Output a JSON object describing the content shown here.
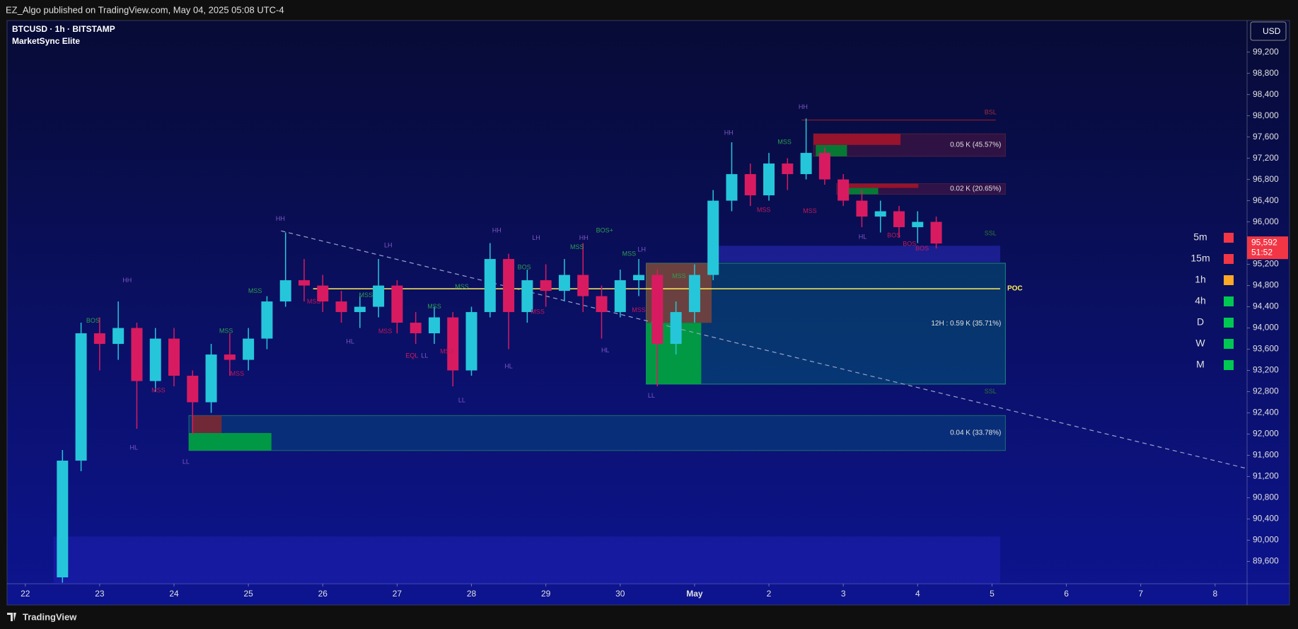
{
  "header": {
    "publisher": "EZ_Algo published on TradingView.com, May 04, 2025 05:08 UTC-4",
    "footer": "TradingView"
  },
  "chart_data": {
    "type": "candlestick",
    "title": "BTCUSD · 1h · BITSTAMP",
    "subtitle": "MarketSync Elite",
    "currency": "USD",
    "up_color": "#26c6da",
    "down_color": "#d81b60",
    "xlim": [
      -0.245,
      16.43
    ],
    "ylim": [
      89180,
      99795
    ],
    "xticks": [
      {
        "value": 0,
        "label": "22"
      },
      {
        "value": 1,
        "label": "23"
      },
      {
        "value": 2,
        "label": "24"
      },
      {
        "value": 3,
        "label": "25"
      },
      {
        "value": 4,
        "label": "26"
      },
      {
        "value": 5,
        "label": "27"
      },
      {
        "value": 6,
        "label": "28"
      },
      {
        "value": 7,
        "label": "29"
      },
      {
        "value": 8,
        "label": "30"
      },
      {
        "value": 9,
        "label": "May"
      },
      {
        "value": 10,
        "label": "2"
      },
      {
        "value": 11,
        "label": "3"
      },
      {
        "value": 12,
        "label": "4"
      },
      {
        "value": 13,
        "label": "5"
      },
      {
        "value": 14,
        "label": "6"
      },
      {
        "value": 15,
        "label": "7"
      },
      {
        "value": 16,
        "label": "8"
      }
    ],
    "yticks": [
      {
        "value": 89600,
        "label": "89,600"
      },
      {
        "value": 90000,
        "label": "90,000"
      },
      {
        "value": 90400,
        "label": "90,400"
      },
      {
        "value": 90800,
        "label": "90,800"
      },
      {
        "value": 91200,
        "label": "91,200"
      },
      {
        "value": 91600,
        "label": "91,600"
      },
      {
        "value": 92000,
        "label": "92,000"
      },
      {
        "value": 92400,
        "label": "92,400"
      },
      {
        "value": 92800,
        "label": "92,800"
      },
      {
        "value": 93200,
        "label": "93,200"
      },
      {
        "value": 93600,
        "label": "93,600"
      },
      {
        "value": 94000,
        "label": "94,000"
      },
      {
        "value": 94400,
        "label": "94,400"
      },
      {
        "value": 94800,
        "label": "94,800"
      },
      {
        "value": 95200,
        "label": "95,200"
      },
      {
        "value": 95600,
        "label": "95,600"
      },
      {
        "value": 96000,
        "label": "96,000"
      },
      {
        "value": 96400,
        "label": "96,400"
      },
      {
        "value": 96800,
        "label": "96,800"
      },
      {
        "value": 97200,
        "label": "97,200"
      },
      {
        "value": 97600,
        "label": "97,600"
      },
      {
        "value": 98000,
        "label": "98,000"
      },
      {
        "value": 98400,
        "label": "98,400"
      },
      {
        "value": 98800,
        "label": "98,800"
      },
      {
        "value": 99200,
        "label": "99,200"
      }
    ],
    "x": [
      0.5,
      0.75,
      1.0,
      1.25,
      1.5,
      1.75,
      2.0,
      2.25,
      2.5,
      2.75,
      3.0,
      3.25,
      3.5,
      3.75,
      4.0,
      4.25,
      4.5,
      4.75,
      5.0,
      5.25,
      5.5,
      5.75,
      6.0,
      6.25,
      6.5,
      6.75,
      7.0,
      7.25,
      7.5,
      7.75,
      8.0,
      8.25,
      8.5,
      8.75,
      9.0,
      9.25,
      9.5,
      9.75,
      10.0,
      10.25,
      10.5,
      10.75,
      11.0,
      11.25,
      11.5,
      11.75,
      12.0,
      12.25
    ],
    "open": [
      89300,
      91500,
      93900,
      93700,
      94000,
      93000,
      93800,
      93100,
      92600,
      93500,
      93400,
      93800,
      94500,
      94900,
      94800,
      94500,
      94300,
      94400,
      94800,
      94100,
      93900,
      94200,
      93200,
      94300,
      95300,
      94300,
      94900,
      94700,
      95000,
      94600,
      94300,
      94900,
      95000,
      93700,
      94300,
      95000,
      96400,
      96900,
      96500,
      97100,
      96900,
      97300,
      96800,
      96400,
      96100,
      96200,
      95900,
      96000
    ],
    "high": [
      91700,
      94100,
      94200,
      94500,
      94100,
      94000,
      94000,
      93200,
      93700,
      93900,
      94000,
      94600,
      95800,
      95300,
      95000,
      94700,
      94600,
      95300,
      94900,
      94300,
      94400,
      94300,
      94400,
      95600,
      95400,
      95100,
      95200,
      95300,
      95600,
      94800,
      95100,
      95300,
      95100,
      94500,
      95200,
      96600,
      97500,
      97100,
      97300,
      97200,
      97950,
      97400,
      96900,
      96600,
      96400,
      96300,
      96200,
      96100
    ],
    "low": [
      89200,
      91300,
      93200,
      93400,
      92100,
      92800,
      92900,
      92000,
      92400,
      93100,
      93200,
      93600,
      94400,
      94500,
      94300,
      94100,
      94000,
      94200,
      93900,
      93700,
      93700,
      92900,
      93100,
      94200,
      93600,
      94100,
      94400,
      94500,
      94300,
      93800,
      94200,
      94600,
      92900,
      93500,
      94100,
      94900,
      96200,
      96300,
      96400,
      96600,
      96800,
      96700,
      96300,
      95900,
      95800,
      95700,
      95600,
      95500
    ],
    "close": [
      91500,
      93900,
      93700,
      94000,
      93000,
      93800,
      93100,
      92600,
      93500,
      93400,
      93800,
      94500,
      94900,
      94800,
      94500,
      94300,
      94400,
      94800,
      94100,
      93900,
      94200,
      93200,
      94300,
      95300,
      94300,
      94900,
      94700,
      95000,
      94600,
      94300,
      94900,
      95000,
      93700,
      94300,
      95000,
      96400,
      96900,
      96500,
      97100,
      96900,
      97300,
      96800,
      96400,
      96100,
      96200,
      95900,
      96000,
      95592
    ],
    "last_price": {
      "value": 95592,
      "label": "95,592"
    },
    "countdown": "51:52",
    "last_color": "#f23645",
    "zones": [
      {
        "x": [
          0.38,
          13.11
        ],
        "y": [
          89180,
          90070
        ],
        "color": "rgba(40,40,200,0.35)"
      },
      {
        "x": [
          9.26,
          13.11
        ],
        "y": [
          95240,
          95550
        ],
        "color": "rgba(50,50,210,0.45)"
      },
      {
        "x": [
          8.35,
          13.18
        ],
        "y": [
          92942,
          95221
        ],
        "color": "rgba(0,150,136,0.28)",
        "border": "#1e8a80",
        "label": "12H : 0.59 K (35.71%)"
      },
      {
        "x": [
          8.35,
          9.23
        ],
        "y": [
          94097,
          95221
        ],
        "color": "rgba(140,70,50,0.75)"
      },
      {
        "x": [
          8.35,
          9.09
        ],
        "y": [
          92942,
          94097
        ],
        "color": "rgba(0,170,60,0.85)"
      },
      {
        "x": [
          2.2,
          13.18
        ],
        "y": [
          91690,
          92350
        ],
        "color": "rgba(0,150,136,0.22)",
        "border": "#1e6f6a",
        "label": "0.04 K (33.78%)"
      },
      {
        "x": [
          2.24,
          2.64
        ],
        "y": [
          92020,
          92350
        ],
        "color": "rgba(140,40,40,0.8)"
      },
      {
        "x": [
          2.2,
          3.31
        ],
        "y": [
          91690,
          92020
        ],
        "color": "rgba(0,170,60,0.85)"
      },
      {
        "x": [
          10.6,
          13.18
        ],
        "y": [
          97235,
          97660
        ],
        "color": "rgba(120,30,60,0.35)",
        "border": "#4a2040",
        "label": "0.05 K (45.57%)"
      },
      {
        "x": [
          10.6,
          11.77
        ],
        "y": [
          97450,
          97660
        ],
        "color": "rgba(170,20,40,0.85)"
      },
      {
        "x": [
          10.63,
          11.05
        ],
        "y": [
          97235,
          97450
        ],
        "color": "rgba(0,140,50,0.85)"
      },
      {
        "x": [
          10.91,
          13.18
        ],
        "y": [
          96520,
          96720
        ],
        "color": "rgba(120,30,60,0.35)",
        "border": "#4a2040",
        "label": "0.02 K (20.65%)"
      },
      {
        "x": [
          10.93,
          12.01
        ],
        "y": [
          96640,
          96720
        ],
        "color": "rgba(170,20,40,0.85)"
      },
      {
        "x": [
          10.93,
          11.47
        ],
        "y": [
          96520,
          96640
        ],
        "color": "rgba(0,140,50,0.85)"
      }
    ],
    "trendlines": [
      {
        "x": [
          3.44,
          16.43
        ],
        "y": [
          95830,
          91350
        ],
        "color": "#9aa4c8",
        "dash": true
      },
      {
        "x": [
          10.44,
          13.05
        ],
        "y": [
          97920,
          97920
        ],
        "color": "#8b1a2a",
        "dash": false
      }
    ],
    "poc": {
      "label": "POC",
      "x": [
        3.87,
        13.11
      ],
      "y": 94740,
      "color": "#ffee58"
    },
    "annotations": [
      {
        "text": "HH",
        "x": 1.37,
        "y": 94890,
        "color": "#7e57c2"
      },
      {
        "text": "BOS",
        "x": 0.91,
        "y": 94130,
        "color": "#2e9e4f"
      },
      {
        "text": "MSS",
        "x": 1.79,
        "y": 92820,
        "color": "#c2185b"
      },
      {
        "text": "HL",
        "x": 1.46,
        "y": 91740,
        "color": "#7e57c2"
      },
      {
        "text": "LL",
        "x": 2.16,
        "y": 91470,
        "color": "#7e57c2"
      },
      {
        "text": "MSS",
        "x": 2.7,
        "y": 93940,
        "color": "#2e9e4f"
      },
      {
        "text": "MSS",
        "x": 2.85,
        "y": 93130,
        "color": "#c2185b"
      },
      {
        "text": "MSS",
        "x": 3.09,
        "y": 94690,
        "color": "#2e9e4f"
      },
      {
        "text": "HH",
        "x": 3.43,
        "y": 96050,
        "color": "#7e57c2"
      },
      {
        "text": "MSS",
        "x": 3.88,
        "y": 94490,
        "color": "#c2185b"
      },
      {
        "text": "HL",
        "x": 4.37,
        "y": 93740,
        "color": "#7e57c2"
      },
      {
        "text": "MSS",
        "x": 4.58,
        "y": 94610,
        "color": "#2e9e4f"
      },
      {
        "text": "MSS",
        "x": 4.84,
        "y": 93930,
        "color": "#c2185b"
      },
      {
        "text": "LH",
        "x": 4.88,
        "y": 95550,
        "color": "#7e57c2"
      },
      {
        "text": "EQL",
        "x": 5.2,
        "y": 93470,
        "color": "#d81b60"
      },
      {
        "text": "LL",
        "x": 5.37,
        "y": 93470,
        "color": "#7e57c2"
      },
      {
        "text": "MSS",
        "x": 5.5,
        "y": 94400,
        "color": "#2e9e4f"
      },
      {
        "text": "MSS",
        "x": 5.67,
        "y": 93550,
        "color": "#c2185b"
      },
      {
        "text": "MSS",
        "x": 5.87,
        "y": 94770,
        "color": "#2e9e4f"
      },
      {
        "text": "LL",
        "x": 5.87,
        "y": 92630,
        "color": "#7e57c2"
      },
      {
        "text": "HH",
        "x": 6.34,
        "y": 95830,
        "color": "#7e57c2"
      },
      {
        "text": "HL",
        "x": 6.5,
        "y": 93270,
        "color": "#7e57c2"
      },
      {
        "text": "BOS",
        "x": 6.71,
        "y": 95140,
        "color": "#2e9e4f"
      },
      {
        "text": "LH",
        "x": 6.87,
        "y": 95690,
        "color": "#7e57c2"
      },
      {
        "text": "MSS",
        "x": 6.89,
        "y": 94300,
        "color": "#c2185b"
      },
      {
        "text": "MSS",
        "x": 7.42,
        "y": 95520,
        "color": "#2e9e4f"
      },
      {
        "text": "HH",
        "x": 7.51,
        "y": 95690,
        "color": "#7e57c2"
      },
      {
        "text": "BOS+",
        "x": 7.79,
        "y": 95830,
        "color": "#2e9e4f"
      },
      {
        "text": "HL",
        "x": 7.8,
        "y": 93570,
        "color": "#7e57c2"
      },
      {
        "text": "MSS",
        "x": 8.12,
        "y": 95390,
        "color": "#2e9e4f"
      },
      {
        "text": "MSS",
        "x": 8.25,
        "y": 94330,
        "color": "#c2185b"
      },
      {
        "text": "LH",
        "x": 8.29,
        "y": 95470,
        "color": "#7e57c2"
      },
      {
        "text": "LL",
        "x": 8.42,
        "y": 92720,
        "color": "#7e57c2"
      },
      {
        "text": "MSS",
        "x": 8.79,
        "y": 94970,
        "color": "#2e9e4f"
      },
      {
        "text": "HH",
        "x": 9.46,
        "y": 97670,
        "color": "#7e57c2"
      },
      {
        "text": "MSS",
        "x": 9.93,
        "y": 96220,
        "color": "#c2185b"
      },
      {
        "text": "MSS",
        "x": 10.21,
        "y": 97500,
        "color": "#2e9e4f"
      },
      {
        "text": "HH",
        "x": 10.46,
        "y": 98160,
        "color": "#7e57c2"
      },
      {
        "text": "MSS",
        "x": 10.55,
        "y": 96200,
        "color": "#c2185b"
      },
      {
        "text": "HL",
        "x": 11.26,
        "y": 95710,
        "color": "#7e57c2"
      },
      {
        "text": "BOS",
        "x": 11.68,
        "y": 95740,
        "color": "#c2185b"
      },
      {
        "text": "BOS",
        "x": 11.89,
        "y": 95580,
        "color": "#c2185b"
      },
      {
        "text": "BOS",
        "x": 12.06,
        "y": 95490,
        "color": "#c2185b"
      },
      {
        "text": "BSL",
        "x": 12.98,
        "y": 98060,
        "color": "#a52a3a"
      },
      {
        "text": "SSL",
        "x": 12.98,
        "y": 95780,
        "color": "#2e7d32"
      },
      {
        "text": "SSL",
        "x": 12.98,
        "y": 92800,
        "color": "#2e7d32"
      }
    ],
    "timeframes": [
      {
        "label": "5m",
        "color": "#f23645"
      },
      {
        "label": "15m",
        "color": "#f23645"
      },
      {
        "label": "1h",
        "color": "#ffa726"
      },
      {
        "label": "4h",
        "color": "#00c853"
      },
      {
        "label": "D",
        "color": "#00c853"
      },
      {
        "label": "W",
        "color": "#00c853"
      },
      {
        "label": "M",
        "color": "#00c853"
      }
    ]
  }
}
